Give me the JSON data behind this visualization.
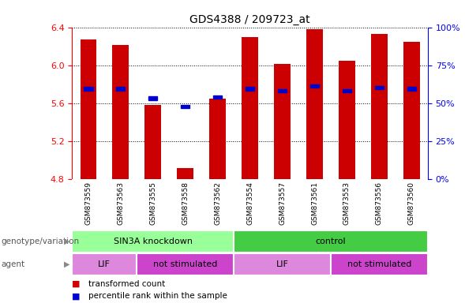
{
  "title": "GDS4388 / 209723_at",
  "samples": [
    "GSM873559",
    "GSM873563",
    "GSM873555",
    "GSM873558",
    "GSM873562",
    "GSM873554",
    "GSM873557",
    "GSM873561",
    "GSM873553",
    "GSM873556",
    "GSM873560"
  ],
  "bar_values": [
    6.27,
    6.21,
    5.58,
    4.91,
    5.65,
    6.3,
    6.01,
    6.38,
    6.05,
    6.33,
    6.25
  ],
  "bar_bottom": 4.8,
  "percentile_values": [
    5.75,
    5.75,
    5.65,
    5.56,
    5.66,
    5.75,
    5.73,
    5.78,
    5.73,
    5.76,
    5.75
  ],
  "ylim": [
    4.8,
    6.4
  ],
  "yticks": [
    4.8,
    5.2,
    5.6,
    6.0,
    6.4
  ],
  "right_yticks": [
    0,
    25,
    50,
    75,
    100
  ],
  "bar_color": "#cc0000",
  "percentile_color": "#0000cc",
  "plot_bg_color": "#ffffff",
  "groups": [
    {
      "label": "SIN3A knockdown",
      "start": 0,
      "end": 5,
      "color": "#99ff99"
    },
    {
      "label": "control",
      "start": 5,
      "end": 11,
      "color": "#44cc44"
    }
  ],
  "agents": [
    {
      "label": "LIF",
      "start": 0,
      "end": 2,
      "color": "#dd88dd"
    },
    {
      "label": "not stimulated",
      "start": 2,
      "end": 5,
      "color": "#cc44cc"
    },
    {
      "label": "LIF",
      "start": 5,
      "end": 8,
      "color": "#dd88dd"
    },
    {
      "label": "not stimulated",
      "start": 8,
      "end": 11,
      "color": "#cc44cc"
    }
  ],
  "legend_items": [
    {
      "label": "transformed count",
      "color": "#cc0000"
    },
    {
      "label": "percentile rank within the sample",
      "color": "#0000cc"
    }
  ],
  "left_label_geno": "genotype/variation",
  "left_label_agent": "agent"
}
